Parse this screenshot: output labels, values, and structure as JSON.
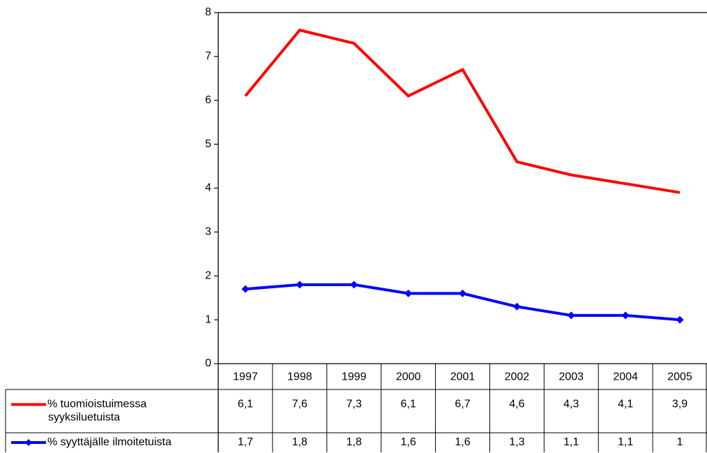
{
  "chart_data": {
    "type": "line",
    "title": "",
    "xlabel": "",
    "ylabel": "",
    "ylim": [
      0,
      8
    ],
    "yticks": [
      "0",
      "1",
      "2",
      "3",
      "4",
      "5",
      "6",
      "7",
      "8"
    ],
    "grid": false,
    "legend": "data-table",
    "categories": [
      "1997",
      "1998",
      "1999",
      "2000",
      "2001",
      "2002",
      "2003",
      "2004",
      "2005"
    ],
    "series": [
      {
        "name_lines": [
          "% tuomioistuimessa",
          "syyksiluetuista"
        ],
        "values": [
          6.1,
          7.6,
          7.3,
          6.1,
          6.7,
          4.6,
          4.3,
          4.1,
          3.9
        ],
        "labels": [
          "6,1",
          "7,6",
          "7,3",
          "6,1",
          "6,7",
          "4,6",
          "4,3",
          "4,1",
          "3,9"
        ],
        "color": "#ff0000",
        "marker": "none"
      },
      {
        "name_lines": [
          "% syyttäjälle ilmoitetuista"
        ],
        "values": [
          1.7,
          1.8,
          1.8,
          1.6,
          1.6,
          1.3,
          1.1,
          1.1,
          1.0
        ],
        "labels": [
          "1,7",
          "1,8",
          "1,8",
          "1,6",
          "1,6",
          "1,3",
          "1,1",
          "1,1",
          "1"
        ],
        "color": "#0000ff",
        "marker": "diamond"
      }
    ]
  }
}
